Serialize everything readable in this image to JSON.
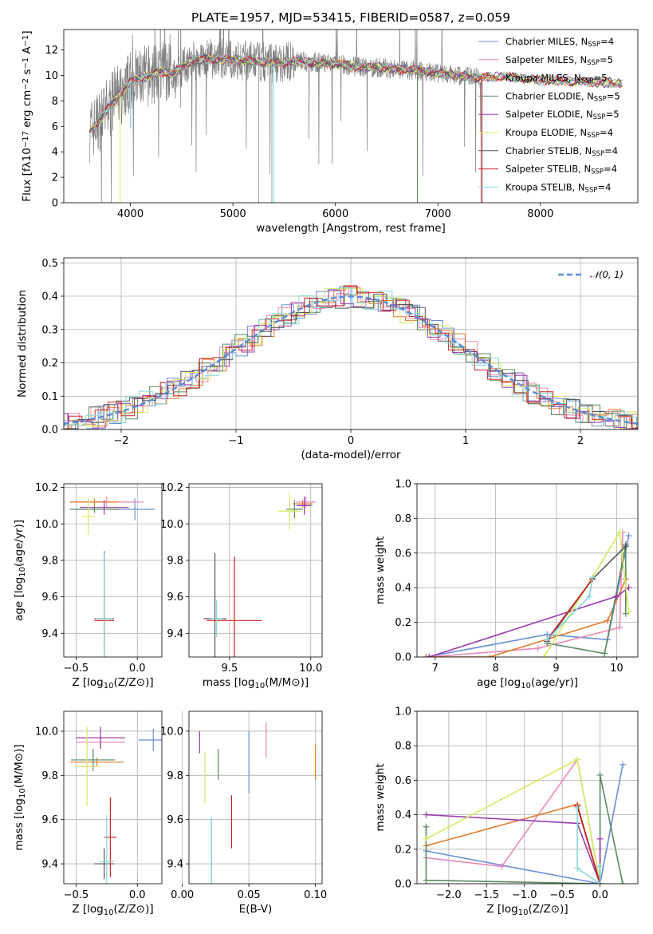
{
  "figure": {
    "title": "PLATE=1957, MJD=53415, FIBERID=0587, z=0.059"
  },
  "colors": {
    "Chabrier MILES": "#6A8FD9",
    "Salpeter MILES": "#E888B8",
    "Kroupa MILES": "#E07A28",
    "Chabrier ELODIE": "#5A8A5E",
    "Salpeter ELODIE": "#9A3AB0",
    "Kroupa ELODIE": "#D4EA60",
    "Chabrier STELIB": "#555555",
    "Salpeter STELIB": "#CC2222",
    "Kroupa STELIB": "#88D8D8",
    "data": "#808080"
  },
  "chart_data": [
    {
      "id": "spectrum",
      "type": "line",
      "title": "PLATE=1957, MJD=53415, FIBERID=0587, z=0.059",
      "xlabel": "wavelength [Angstrom, rest frame]",
      "ylabel": "Flux [fλ10⁻¹⁷ erg cm⁻² s⁻¹ A⁻¹]",
      "xlim": [
        3350,
        8950
      ],
      "ylim": [
        0,
        13.6
      ],
      "xticks": [
        4000,
        5000,
        6000,
        7000,
        8000
      ],
      "yticks": [
        0,
        2,
        4,
        6,
        8,
        10,
        12
      ],
      "grid": false,
      "legend_position": "right",
      "legend": [
        {
          "label": "Chabrier MILES, N",
          "sub": "SSP",
          "suffix": "=4",
          "key": "Chabrier MILES"
        },
        {
          "label": "Salpeter MILES, N",
          "sub": "SSP",
          "suffix": "=5",
          "key": "Salpeter MILES"
        },
        {
          "label": "Kroupa MILES, N",
          "sub": "SSP",
          "suffix": "=5",
          "key": "Kroupa MILES"
        },
        {
          "label": "Chabrier ELODIE, N",
          "sub": "SSP",
          "suffix": "=5",
          "key": "Chabrier ELODIE"
        },
        {
          "label": "Salpeter ELODIE, N",
          "sub": "SSP",
          "suffix": "=5",
          "key": "Salpeter ELODIE"
        },
        {
          "label": "Kroupa ELODIE, N",
          "sub": "SSP",
          "suffix": "=4",
          "key": "Kroupa ELODIE"
        },
        {
          "label": "Chabrier STELIB, N",
          "sub": "SSP",
          "suffix": "=4",
          "key": "Chabrier STELIB"
        },
        {
          "label": "Salpeter STELIB, N",
          "sub": "SSP",
          "suffix": "=4",
          "key": "Salpeter STELIB"
        },
        {
          "label": "Kroupa STELIB, N",
          "sub": "SSP",
          "suffix": "=4",
          "key": "Kroupa STELIB"
        }
      ],
      "continuum": {
        "x": [
          3600,
          3700,
          3800,
          3900,
          4000,
          4100,
          4200,
          4300,
          4400,
          4500,
          4600,
          4800,
          5000,
          5200,
          5400,
          5600,
          5800,
          6000,
          6200,
          6400,
          6600,
          6800,
          7000,
          7200,
          7400,
          7600,
          7800,
          8000,
          8200,
          8400,
          8800
        ],
        "y": [
          5.6,
          6.5,
          7.6,
          8.6,
          9.5,
          9.8,
          10.0,
          10.3,
          10.1,
          10.6,
          11.2,
          11.3,
          11.2,
          11.1,
          11.0,
          11.1,
          11.0,
          10.9,
          10.7,
          10.6,
          10.5,
          10.4,
          10.2,
          10.0,
          9.8,
          9.9,
          9.8,
          9.6,
          9.6,
          9.5,
          9.4
        ]
      },
      "model_dips": [
        {
          "x": 3900,
          "y": 0,
          "series": "Kroupa ELODIE"
        },
        {
          "x": 4000,
          "y": 5.8,
          "series": "Kroupa STELIB"
        },
        {
          "x": 5400,
          "y": 0,
          "series": "Kroupa STELIB"
        },
        {
          "x": 6800,
          "y": 0,
          "series": "Chabrier ELODIE"
        },
        {
          "x": 7430,
          "y": 0,
          "series": "Salpeter STELIB"
        }
      ]
    },
    {
      "id": "residuals",
      "type": "area",
      "xlabel": "(data-model)/error",
      "ylabel": "Normed distribution",
      "xlim": [
        -2.5,
        2.5
      ],
      "ylim": [
        0,
        0.515
      ],
      "xticks": [
        -2,
        -1,
        0,
        1,
        2
      ],
      "yticks": [
        0.0,
        0.1,
        0.2,
        0.3,
        0.4,
        0.5
      ],
      "grid": true,
      "legend_position": "top-right",
      "reference_curve": {
        "label": "𝒩(0, 1)",
        "mu": 0,
        "sigma": 1
      }
    },
    {
      "id": "age_vs_Z",
      "type": "scatter",
      "xlabel": "Z [log₁₀(Z/Z⊙)]",
      "ylabel": "age  [log₁₀(age/yr)]",
      "xlim": [
        -0.6,
        0.2
      ],
      "ylim": [
        9.27,
        10.22
      ],
      "xticks": [
        -0.5,
        0.0
      ],
      "yticks": [
        9.4,
        9.6,
        9.8,
        10.0,
        10.2
      ],
      "grid": true,
      "points": [
        {
          "series": "Chabrier MILES",
          "x": -0.02,
          "y": 10.08,
          "xerr": 0.16,
          "yerr": 0.06
        },
        {
          "series": "Salpeter MILES",
          "x": -0.25,
          "y": 10.12,
          "xerr": 0.3,
          "yerr": 0.03
        },
        {
          "series": "Kroupa MILES",
          "x": -0.35,
          "y": 10.12,
          "xerr": 0.2,
          "yerr": 0.02
        },
        {
          "series": "Chabrier ELODIE",
          "x": -0.35,
          "y": 10.08,
          "xerr": 0.2,
          "yerr": 0.02
        },
        {
          "series": "Salpeter ELODIE",
          "x": -0.27,
          "y": 10.09,
          "xerr": 0.2,
          "yerr": 0.04
        },
        {
          "series": "Kroupa ELODIE",
          "x": -0.4,
          "y": 10.04,
          "xerr": 0.05,
          "yerr": 0.1
        },
        {
          "series": "Chabrier STELIB",
          "x": -0.27,
          "y": 9.48,
          "xerr": 0.08,
          "yerr": 0.37
        },
        {
          "series": "Salpeter STELIB",
          "x": -0.27,
          "y": 9.47,
          "xerr": 0.08,
          "yerr": 0.15
        },
        {
          "series": "Kroupa STELIB",
          "x": -0.27,
          "y": 9.48,
          "xerr": 0.07,
          "yerr": 0.36
        }
      ]
    },
    {
      "id": "age_vs_mass",
      "type": "scatter",
      "xlabel": "mass [log₁₀(M/M⊙)]",
      "ylabel": "",
      "xlim": [
        9.25,
        10.07
      ],
      "ylim": [
        9.27,
        10.22
      ],
      "xticks": [
        9.5,
        10.0
      ],
      "yticks": [
        9.4,
        9.6,
        9.8,
        10.0,
        10.2
      ],
      "grid": true,
      "points": [
        {
          "series": "Chabrier MILES",
          "x": 9.96,
          "y": 10.1,
          "xerr": 0.05,
          "yerr": 0.03
        },
        {
          "series": "Salpeter MILES",
          "x": 9.97,
          "y": 10.12,
          "xerr": 0.06,
          "yerr": 0.03
        },
        {
          "series": "Kroupa MILES",
          "x": 9.95,
          "y": 10.11,
          "xerr": 0.06,
          "yerr": 0.02
        },
        {
          "series": "Chabrier ELODIE",
          "x": 9.9,
          "y": 10.08,
          "xerr": 0.05,
          "yerr": 0.05
        },
        {
          "series": "Salpeter ELODIE",
          "x": 9.96,
          "y": 10.1,
          "xerr": 0.04,
          "yerr": 0.05
        },
        {
          "series": "Kroupa ELODIE",
          "x": 9.87,
          "y": 10.07,
          "xerr": 0.07,
          "yerr": 0.1
        },
        {
          "series": "Chabrier STELIB",
          "x": 9.41,
          "y": 9.48,
          "xerr": 0.07,
          "yerr": 0.36
        },
        {
          "series": "Salpeter STELIB",
          "x": 9.53,
          "y": 9.47,
          "xerr": 0.17,
          "yerr": 0.35
        },
        {
          "series": "Kroupa STELIB",
          "x": 9.42,
          "y": 9.48,
          "xerr": 0.04,
          "yerr": 0.1
        }
      ]
    },
    {
      "id": "mass_weight_vs_age",
      "type": "line",
      "xlabel": "age  [log₁₀(age/yr)]",
      "ylabel": "mass weight",
      "xlim": [
        6.7,
        10.35
      ],
      "ylim": [
        0,
        1
      ],
      "xticks": [
        7,
        8,
        9,
        10
      ],
      "yticks": [
        0.0,
        0.2,
        0.4,
        0.6,
        0.8,
        1.0
      ],
      "grid": true,
      "series": [
        {
          "name": "Chabrier MILES",
          "points": [
            [
              6.85,
              0.0
            ],
            [
              8.85,
              0.13
            ],
            [
              9.85,
              0.1
            ],
            [
              10.2,
              0.7
            ]
          ]
        },
        {
          "name": "Salpeter MILES",
          "points": [
            [
              6.9,
              0.0
            ],
            [
              8.7,
              0.05
            ],
            [
              10.05,
              0.17
            ],
            [
              10.1,
              0.72
            ]
          ]
        },
        {
          "name": "Kroupa MILES",
          "points": [
            [
              6.85,
              0.0
            ],
            [
              7.9,
              0.0
            ],
            [
              9.85,
              0.21
            ],
            [
              10.15,
              0.45
            ]
          ]
        },
        {
          "name": "Chabrier ELODIE",
          "points": [
            [
              8.85,
              0.08
            ],
            [
              9.8,
              0.02
            ],
            [
              10.15,
              0.65
            ],
            [
              10.15,
              0.25
            ]
          ]
        },
        {
          "name": "Salpeter ELODIE",
          "points": [
            [
              6.9,
              0.0
            ],
            [
              10.0,
              0.35
            ],
            [
              10.2,
              0.4
            ]
          ]
        },
        {
          "name": "Kroupa ELODIE",
          "points": [
            [
              8.8,
              0.0
            ],
            [
              10.05,
              0.72
            ],
            [
              10.2,
              0.26
            ]
          ]
        },
        {
          "name": "Chabrier STELIB",
          "points": [
            [
              8.85,
              0.09
            ],
            [
              9.6,
              0.45
            ],
            [
              10.15,
              0.64
            ]
          ]
        },
        {
          "name": "Salpeter STELIB",
          "points": [
            [
              8.85,
              0.1
            ],
            [
              9.6,
              0.45
            ]
          ]
        },
        {
          "name": "Kroupa STELIB",
          "points": [
            [
              8.85,
              0.1
            ],
            [
              9.55,
              0.35
            ],
            [
              9.6,
              0.46
            ]
          ]
        }
      ]
    },
    {
      "id": "mass_vs_Z",
      "type": "scatter",
      "xlabel": "Z [log₁₀(Z/Z⊙)]",
      "ylabel": "mass [log₁₀(M/M⊙)]",
      "xlim": [
        -0.6,
        0.2
      ],
      "ylim": [
        9.31,
        10.09
      ],
      "xticks": [
        -0.5,
        0.0
      ],
      "yticks": [
        9.4,
        9.6,
        9.8,
        10.0
      ],
      "grid": true,
      "points": [
        {
          "series": "Chabrier MILES",
          "x": 0.13,
          "y": 9.96,
          "xerr": 0.12,
          "yerr": 0.05
        },
        {
          "series": "Salpeter MILES",
          "x": -0.3,
          "y": 9.95,
          "xerr": 0.2,
          "yerr": 0.03
        },
        {
          "series": "Kroupa MILES",
          "x": -0.33,
          "y": 9.86,
          "xerr": 0.22,
          "yerr": 0.02
        },
        {
          "series": "Chabrier ELODIE",
          "x": -0.36,
          "y": 9.87,
          "xerr": 0.18,
          "yerr": 0.05
        },
        {
          "series": "Salpeter ELODIE",
          "x": -0.3,
          "y": 9.97,
          "xerr": 0.2,
          "yerr": 0.05
        },
        {
          "series": "Kroupa ELODIE",
          "x": -0.41,
          "y": 9.84,
          "xerr": 0.1,
          "yerr": 0.18
        },
        {
          "series": "Chabrier STELIB",
          "x": -0.27,
          "y": 9.4,
          "xerr": 0.08,
          "yerr": 0.07
        },
        {
          "series": "Salpeter STELIB",
          "x": -0.22,
          "y": 9.52,
          "xerr": 0.05,
          "yerr": 0.18
        },
        {
          "series": "Kroupa STELIB",
          "x": -0.25,
          "y": 9.41,
          "xerr": 0.06,
          "yerr": 0.21
        }
      ]
    },
    {
      "id": "mass_vs_EBV",
      "type": "scatter",
      "xlabel": "E(B-V)",
      "ylabel": "",
      "xlim": [
        0.005,
        0.105
      ],
      "ylim": [
        9.31,
        10.09
      ],
      "xticks": [
        0.0,
        0.05,
        0.1
      ],
      "yticks": [
        9.4,
        9.6,
        9.8,
        10.0
      ],
      "grid": true,
      "points": [
        {
          "series": "Chabrier MILES",
          "x": 0.05,
          "y": 9.86,
          "xerr": 0.0,
          "yerr": 0.14
        },
        {
          "series": "Salpeter MILES",
          "x": 0.063,
          "y": 9.96,
          "xerr": 0.0,
          "yerr": 0.08
        },
        {
          "series": "Kroupa MILES",
          "x": 0.1,
          "y": 9.86,
          "xerr": 0.0,
          "yerr": 0.08
        },
        {
          "series": "Chabrier ELODIE",
          "x": 0.027,
          "y": 9.85,
          "xerr": 0.0,
          "yerr": 0.07
        },
        {
          "series": "Salpeter ELODIE",
          "x": 0.013,
          "y": 9.95,
          "xerr": 0.0,
          "yerr": 0.05
        },
        {
          "series": "Kroupa ELODIE",
          "x": 0.017,
          "y": 9.79,
          "xerr": 0.0,
          "yerr": 0.12
        },
        {
          "series": "Chabrier STELIB",
          "x": 0.022,
          "y": 9.45,
          "xerr": 0.0,
          "yerr": 0.15
        },
        {
          "series": "Salpeter STELIB",
          "x": 0.037,
          "y": 9.59,
          "xerr": 0.0,
          "yerr": 0.12
        },
        {
          "series": "Kroupa STELIB",
          "x": 0.022,
          "y": 9.46,
          "xerr": 0.0,
          "yerr": 0.15
        }
      ]
    },
    {
      "id": "mass_weight_vs_Z",
      "type": "line",
      "xlabel": "Z [log₁₀(Z/Z⊙)]",
      "ylabel": "mass weight",
      "xlim": [
        -2.42,
        0.5
      ],
      "ylim": [
        0,
        1
      ],
      "xticks": [
        -2.0,
        -1.5,
        -1.0,
        -0.5,
        0.0
      ],
      "yticks": [
        0.0,
        0.2,
        0.4,
        0.6,
        0.8,
        1.0
      ],
      "grid": true,
      "series": [
        {
          "name": "Chabrier MILES",
          "points": [
            [
              -2.3,
              0.19
            ],
            [
              0.0,
              0.0
            ],
            [
              0.3,
              0.69
            ]
          ]
        },
        {
          "name": "Salpeter MILES",
          "points": [
            [
              -2.3,
              0.15
            ],
            [
              -1.3,
              0.1
            ],
            [
              -0.3,
              0.72
            ],
            [
              0.0,
              0.0
            ]
          ]
        },
        {
          "name": "Kroupa MILES",
          "points": [
            [
              -2.3,
              0.22
            ],
            [
              -0.3,
              0.46
            ],
            [
              0.0,
              0.0
            ]
          ]
        },
        {
          "name": "Chabrier ELODIE",
          "points": [
            [
              -2.3,
              0.33
            ],
            [
              -2.3,
              0.02
            ],
            [
              0.0,
              0.0
            ],
            [
              0.0,
              0.63
            ],
            [
              0.3,
              0.0
            ]
          ]
        },
        {
          "name": "Salpeter ELODIE",
          "points": [
            [
              -2.3,
              0.4
            ],
            [
              -0.3,
              0.35
            ],
            [
              0.0,
              0.0
            ],
            [
              0.0,
              0.26
            ]
          ]
        },
        {
          "name": "Kroupa ELODIE",
          "points": [
            [
              -2.3,
              0.26
            ],
            [
              -0.3,
              0.72
            ],
            [
              0.0,
              0.0
            ]
          ]
        },
        {
          "name": "Chabrier STELIB",
          "points": [
            [
              -0.3,
              0.45
            ],
            [
              0.0,
              0.0
            ],
            [
              0.0,
              0.1
            ]
          ]
        },
        {
          "name": "Salpeter STELIB",
          "points": [
            [
              -0.3,
              0.45
            ],
            [
              0.0,
              0.0
            ]
          ]
        },
        {
          "name": "Kroupa STELIB",
          "points": [
            [
              -0.3,
              0.44
            ],
            [
              -0.3,
              0.09
            ],
            [
              0.0,
              0.0
            ],
            [
              0.0,
              0.1
            ]
          ]
        }
      ]
    }
  ]
}
